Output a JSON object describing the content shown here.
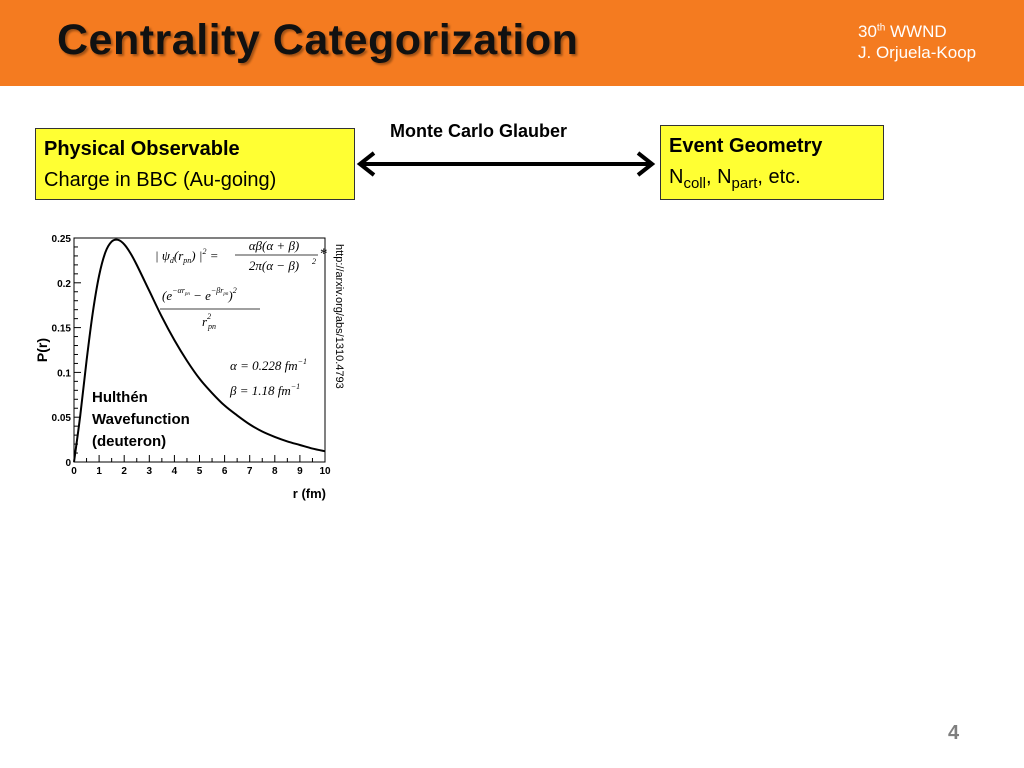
{
  "slide": {
    "title": "Centrality Categorization",
    "conference_number": "30",
    "conference_suffix": "th",
    "conference_name": " WWND",
    "author": "J. Orjuela-Koop",
    "page_number": "4"
  },
  "left_box": {
    "heading": "Physical Observable",
    "text": "Charge in BBC (Au-going)"
  },
  "right_box": {
    "heading": "Event Geometry",
    "n1": "N",
    "sub1": "coll",
    "sep": ", N",
    "sub2": "part",
    "tail": ", etc."
  },
  "arrow_label": "Monte Carlo Glauber",
  "colors": {
    "header": "#f47b20",
    "box_fill": "#ffff33",
    "page_number": "#7f7f7f"
  },
  "chart_data": {
    "type": "line",
    "title": "",
    "xlabel": "r (fm)",
    "ylabel": "P(r)",
    "xlim": [
      0,
      10
    ],
    "ylim": [
      0,
      0.25
    ],
    "x_ticks": [
      "0",
      "1",
      "2",
      "3",
      "4",
      "5",
      "6",
      "7",
      "8",
      "9",
      "10"
    ],
    "y_ticks": [
      "0",
      "0.05",
      "0.1",
      "0.15",
      "0.2",
      "0.25"
    ],
    "series": [
      {
        "x": [
          0,
          0.25,
          0.5,
          0.75,
          1.0,
          1.25,
          1.5,
          1.75,
          2.0,
          2.25,
          2.5,
          3.0,
          3.5,
          4.0,
          4.5,
          5.0,
          5.5,
          6.0,
          6.5,
          7.0,
          7.5,
          8.0,
          8.5,
          9.0,
          9.5,
          10.0
        ],
        "y": [
          0,
          0.052,
          0.113,
          0.167,
          0.208,
          0.234,
          0.246,
          0.248,
          0.243,
          0.233,
          0.22,
          0.191,
          0.162,
          0.136,
          0.113,
          0.093,
          0.077,
          0.063,
          0.052,
          0.042,
          0.034,
          0.028,
          0.023,
          0.019,
          0.015,
          0.012
        ]
      }
    ],
    "annotation": [
      "Hulthén",
      "Wavefunction",
      "(deuteron)"
    ],
    "formula": {
      "lhs_open": "| ",
      "lhs_psi": "ψ",
      "lhs_d": "d",
      "lhs_r": "(r",
      "lhs_pn": "pn",
      "lhs_close": ") |",
      "lhs_sq": "2",
      "eq": " =",
      "f1_num": "αβ(α + β)",
      "f1_den": "2π(α − β)",
      "f1_den_sq": "2",
      "star": "*",
      "f2_num_open": "(e",
      "f2_exp1": "−αr",
      "f2_exp1_sub": "pn",
      "f2_minus": " − e",
      "f2_exp2": "−βr",
      "f2_exp2_sub": "pn",
      "f2_num_close": ")",
      "f2_num_sq": "2",
      "f2_den": "r",
      "f2_den_sq": "2",
      "f2_den_sub": "pn",
      "alpha_line": "α = 0.228 fm",
      "alpha_exp": "−1",
      "beta_line": "β = 1.18 fm",
      "beta_exp": "−1"
    },
    "side_note": "http://arxiv.org/abs/1310.4793"
  }
}
